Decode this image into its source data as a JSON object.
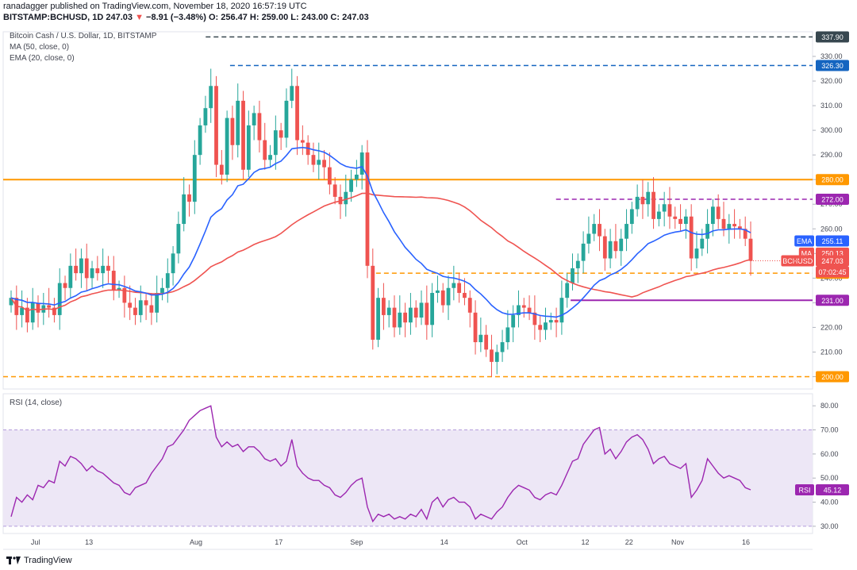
{
  "header": {
    "published_by": "ranadagger published on TradingView.com, November 18, 2020 16:57:19 UTC",
    "symbol": "BITSTAMP:BCHUSD, 1D",
    "price": "247.03",
    "arrow": "▼",
    "change": "−8.91 (−3.48%)",
    "ohlc": "O: 256.47 H: 259.00 L: 243.00 C: 247.03"
  },
  "legend": {
    "title": "Bitcoin Cash / U.S. Dollar, 1D, BITSTAMP",
    "ma": "MA (50, close, 0)",
    "ema": "EMA (20, close, 0)",
    "rsi": "RSI (14, close)"
  },
  "footer": {
    "brand": "TradingView"
  },
  "colors": {
    "up": "#26a69a",
    "down": "#ef5350",
    "ema": "#2962ff",
    "ma": "#ef5350",
    "orange": "#ff9800",
    "purple": "#9c27b0",
    "navy": "#1565c0",
    "black": "#37474f",
    "rsi_band": "#ede7f6",
    "rsi_line": "#9c27b0"
  },
  "chart_data": [
    {
      "type": "candlestick",
      "title": "Bitcoin Cash / U.S. Dollar, 1D, BITSTAMP",
      "currency": "USD",
      "ylim": [
        195,
        340
      ],
      "y_ticks": [
        200,
        210,
        220,
        230,
        240,
        250,
        260,
        270,
        280,
        290,
        300,
        310,
        320,
        330
      ],
      "x_ticks": [
        "Jul",
        "13",
        "Aug",
        "17",
        "Sep",
        "14",
        "Oct",
        "12",
        "22",
        "Nov",
        "16"
      ],
      "close": [
        232,
        225,
        228,
        222,
        230,
        226,
        229,
        228,
        225,
        238,
        236,
        245,
        242,
        248,
        240,
        244,
        242,
        245,
        243,
        235,
        236,
        230,
        228,
        225,
        231,
        229,
        226,
        234,
        236,
        242,
        250,
        262,
        274,
        271,
        290,
        302,
        309,
        318,
        286,
        282,
        305,
        294,
        312,
        284,
        302,
        307,
        296,
        288,
        290,
        300,
        297,
        312,
        318,
        296,
        295,
        290,
        286,
        288,
        285,
        278,
        273,
        270,
        275,
        280,
        282,
        291,
        245,
        215,
        232,
        225,
        228,
        220,
        226,
        222,
        228,
        224,
        230,
        221,
        234,
        235,
        229,
        236,
        238,
        234,
        232,
        226,
        214,
        217,
        211,
        206,
        210,
        214,
        220,
        225,
        229,
        228,
        226,
        221,
        219,
        222,
        223,
        222,
        232,
        238,
        244,
        247,
        254,
        258,
        262,
        257,
        248,
        255,
        251,
        256,
        262,
        268,
        273,
        270,
        275,
        264,
        267,
        270,
        265,
        264,
        262,
        265,
        248,
        252,
        256,
        262,
        269,
        264,
        260,
        262,
        261,
        260,
        256,
        247
      ],
      "ema20_end": 255.11,
      "ma50_end": 250.13,
      "last_price": 247.03,
      "countdown": "07:02:45",
      "levels": [
        {
          "value": 337.9,
          "label": "337.90",
          "style": "dashed",
          "color": "black",
          "x_start_index": 40
        },
        {
          "value": 326.3,
          "label": "326.30",
          "style": "dashed",
          "color": "navy",
          "x_start_index": 45
        },
        {
          "value": 280.0,
          "label": "280.00",
          "style": "solid",
          "color": "orange",
          "x_start_index": 0
        },
        {
          "value": 272.0,
          "label": "272.00",
          "style": "dashed",
          "color": "purple",
          "x_start_index": 112
        },
        {
          "value": 242.0,
          "label": "242.00",
          "style": "dashed",
          "color": "orange",
          "x_start_index": 75
        },
        {
          "value": 231.0,
          "label": "231.00",
          "style": "solid",
          "color": "purple",
          "x_start_index": 115
        },
        {
          "value": 200.0,
          "label": "200.00",
          "style": "dashed",
          "color": "orange",
          "x_start_index": 0
        }
      ],
      "tags": [
        {
          "label": "EMA",
          "value": "255.11",
          "color": "ema"
        },
        {
          "label": "MA",
          "value": "250.13",
          "color": "ma"
        },
        {
          "label": "BCHUSD",
          "value": "247.03",
          "color": "ma"
        }
      ]
    },
    {
      "type": "line",
      "title": "RSI (14, close)",
      "ylim": [
        27,
        85
      ],
      "y_ticks": [
        30,
        40,
        50,
        60,
        70,
        80
      ],
      "band": [
        30,
        70
      ],
      "values": [
        34,
        42,
        40,
        43,
        41,
        47,
        46,
        49,
        48,
        57,
        55,
        59,
        58,
        56,
        53,
        55,
        53,
        52,
        50,
        48,
        47,
        44,
        43,
        46,
        47,
        48,
        52,
        55,
        58,
        63,
        64,
        67,
        70,
        74,
        76,
        78,
        79,
        80,
        67,
        63,
        65,
        63,
        64,
        61,
        63,
        63,
        61,
        58,
        57,
        58,
        55,
        57,
        66,
        55,
        52,
        50,
        49,
        49,
        47,
        46,
        43,
        42,
        44,
        47,
        49,
        50,
        38,
        32,
        35,
        34,
        35,
        33,
        34,
        33,
        35,
        34,
        37,
        33,
        40,
        42,
        38,
        41,
        42,
        40,
        40,
        38,
        33,
        35,
        34,
        33,
        36,
        38,
        42,
        45,
        47,
        46,
        45,
        42,
        41,
        43,
        44,
        43,
        47,
        52,
        57,
        58,
        64,
        67,
        70,
        71,
        60,
        62,
        58,
        61,
        65,
        67,
        68,
        66,
        62,
        56,
        58,
        59,
        56,
        55,
        54,
        56,
        42,
        45,
        49,
        58,
        55,
        52,
        50,
        51,
        50,
        49,
        46,
        45.12
      ],
      "last_value": "45.12",
      "last_label": "RSI"
    }
  ]
}
